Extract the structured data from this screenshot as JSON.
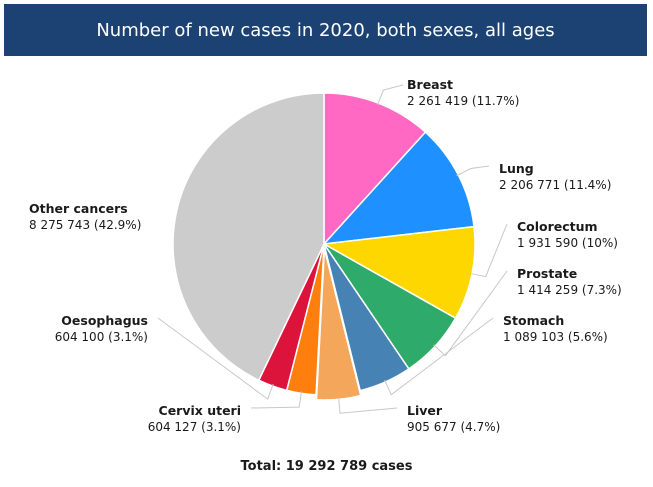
{
  "header": {
    "title": "Number of new cases in 2020, both sexes, all ages"
  },
  "chart_data": {
    "type": "pie",
    "title": "Number of new cases in 2020, both sexes, all ages",
    "total_label": "Total: 19 292 789 cases",
    "total": 19292789,
    "slices": [
      {
        "name": "Breast",
        "value": 2261419,
        "label": "2 261 419 (11.7%)",
        "color": "#ff69c4"
      },
      {
        "name": "Lung",
        "value": 2206771,
        "label": "2 206 771 (11.4%)",
        "color": "#1e90ff"
      },
      {
        "name": "Colorectum",
        "value": 1931590,
        "label": "1 931 590 (10%)",
        "color": "#ffd700"
      },
      {
        "name": "Prostate",
        "value": 1414259,
        "label": "1 414 259 (7.3%)",
        "color": "#2eaa6a"
      },
      {
        "name": "Stomach",
        "value": 1089103,
        "label": "1 089 103 (5.6%)",
        "color": "#4682b4"
      },
      {
        "name": "Liver",
        "value": 905677,
        "label": "905 677 (4.7%)",
        "color": "#f4a65a"
      },
      {
        "name": "Cervix uteri",
        "value": 604127,
        "label": "604 127 (3.1%)",
        "color": "#ff7f0e"
      },
      {
        "name": "Oesophagus",
        "value": 604100,
        "label": "604 100 (3.1%)",
        "color": "#dc143c"
      },
      {
        "name": "Other cancers",
        "value": 8275743,
        "label": "8 275 743 (42.9%)",
        "color": "#cccccc"
      }
    ]
  }
}
